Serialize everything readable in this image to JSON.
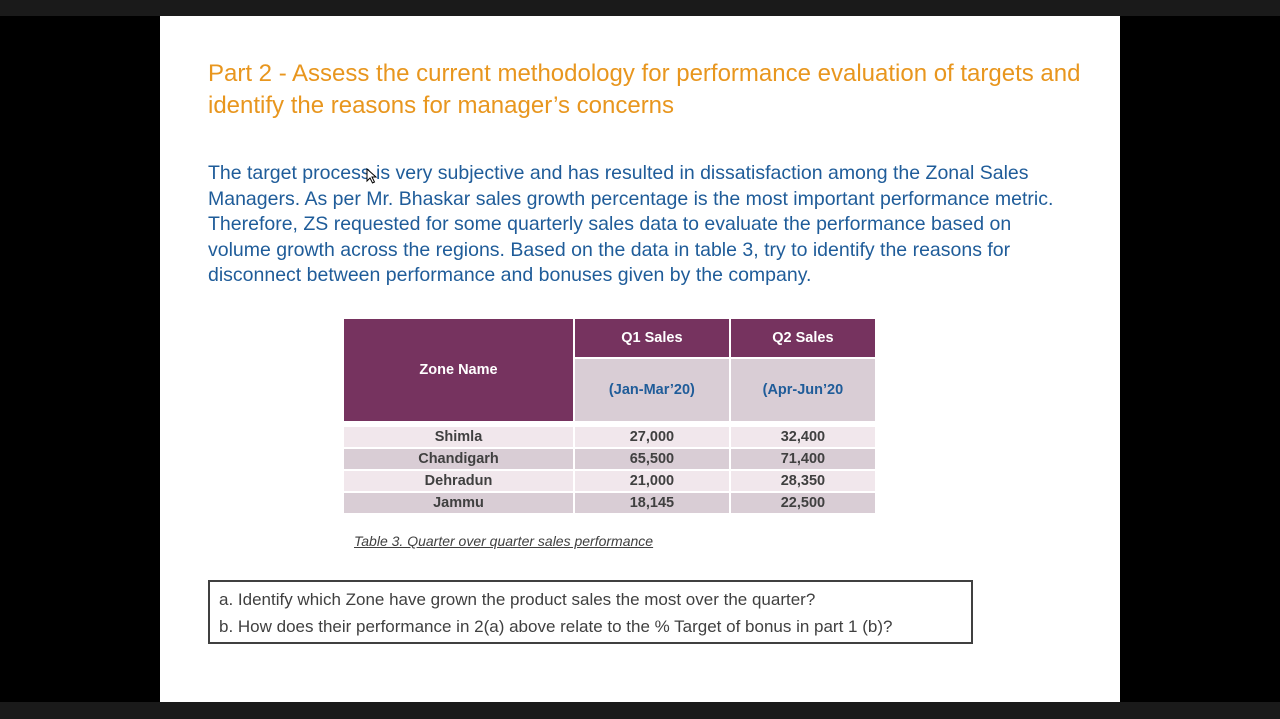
{
  "slide": {
    "title": "Part 2 - Assess the current methodology for performance evaluation of targets and identify the reasons for manager’s concerns",
    "body": "The target process is very subjective and has resulted in dissatisfaction among the Zonal Sales Managers. As per Mr. Bhaskar sales growth percentage is the most important performance metric. Therefore, ZS requested for some quarterly sales data to evaluate the performance based on volume growth across the regions. Based on the data in table 3, try to identify the reasons for disconnect between performance and bonuses given by the company."
  },
  "table": {
    "zone_header": "Zone Name",
    "q1_header": "Q1 Sales",
    "q1_sub": "(Jan-Mar’20)",
    "q2_header": "Q2 Sales",
    "q2_sub": "(Apr-Jun’20",
    "rows": [
      {
        "zone": "Shimla",
        "q1": "27,000",
        "q2": "32,400"
      },
      {
        "zone": "Chandigarh",
        "q1": "65,500",
        "q2": "71,400"
      },
      {
        "zone": "Dehradun",
        "q1": "21,000",
        "q2": "28,350"
      },
      {
        "zone": "Jammu",
        "q1": "18,145",
        "q2": "22,500"
      }
    ],
    "caption": "Table 3. Quarter over quarter sales performance"
  },
  "questions": {
    "a": "a. Identify which Zone have grown the product sales the most over the quarter?",
    "b": "b. How does their performance in 2(a) above relate to the % Target of bonus in part 1 (b)?"
  },
  "colors": {
    "title": "#E8961E",
    "body": "#1F5C99",
    "header_bg": "#76335F",
    "row_light": "#F1E7EC",
    "row_dark": "#D9CDD5"
  }
}
